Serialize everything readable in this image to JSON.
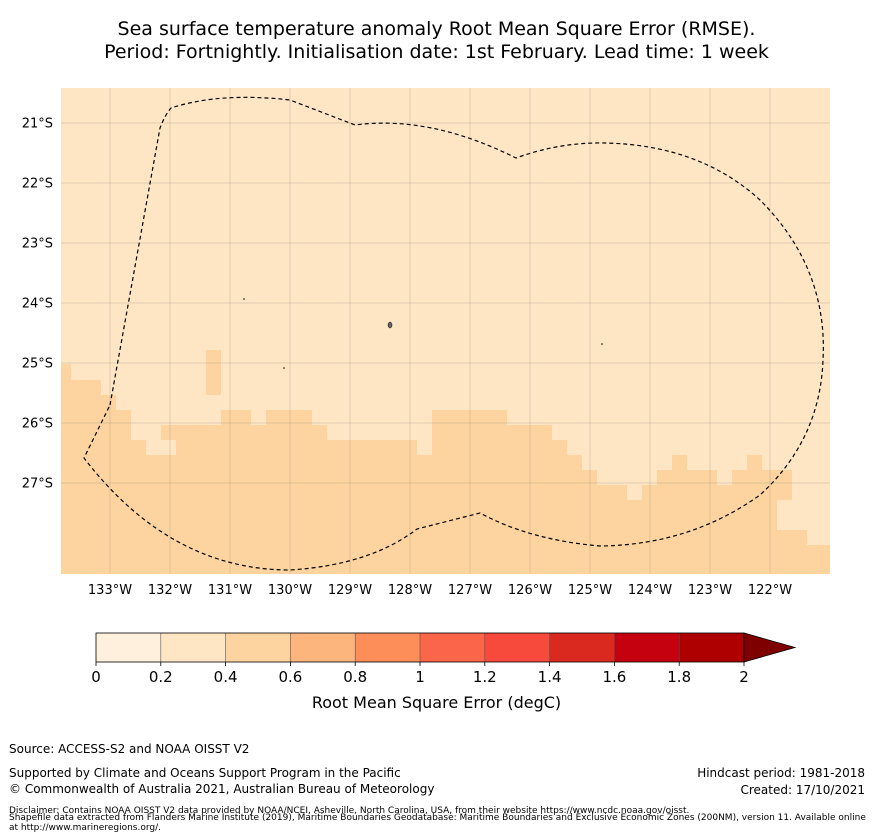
{
  "title": {
    "line1": "Sea surface temperature anomaly Root Mean Square Error (RMSE).",
    "line2": "Period: Fortnightly. Initialisation date: 1st February. Lead time: 1 week"
  },
  "map": {
    "lon_labels": [
      "133°W",
      "132°W",
      "131°W",
      "130°W",
      "129°W",
      "128°W",
      "127°W",
      "126°W",
      "125°W",
      "124°W",
      "123°W",
      "122°W"
    ],
    "lat_labels": [
      "21°S",
      "22°S",
      "23°S",
      "24°S",
      "25°S",
      "26°S",
      "27°S"
    ],
    "colors": {
      "low": "#fee6c5",
      "mid": "#fdd49f",
      "outline": "#000000"
    }
  },
  "colorbar": {
    "label": "Root Mean Square Error (degC)",
    "ticks": [
      "0",
      "0.2",
      "0.4",
      "0.6",
      "0.8",
      "1",
      "1.2",
      "1.4",
      "1.6",
      "1.8",
      "2"
    ],
    "colors": [
      "#fff0dd",
      "#fee6c5",
      "#fdd49f",
      "#fdb57e",
      "#fd8d59",
      "#fb6549",
      "#f84a3c",
      "#da2a20",
      "#c5000f",
      "#ae0001"
    ],
    "extend_color": "#7f0000"
  },
  "footer": {
    "source": "Source: ACCESS-S2 and NOAA OISST V2",
    "supported": "Supported by Climate and Oceans Support Program in the Pacific",
    "copyright": "© Commonwealth of Australia 2021, Australian Bureau of Meteorology",
    "hindcast": "Hindcast period: 1981-2018",
    "created": "Created: 17/10/2021",
    "disclaimer1": "Disclaimer: Contains NOAA OISST V2 data provided by NOAA/NCEI, Asheville, North Carolina, USA, from their website https://www.ncdc.noaa.gov/oisst.",
    "disclaimer2": "Shapefile data extracted from Flanders Marine Institute (2019), Maritime Boundaries Geodatabase: Maritime Boundaries and Exclusive Economic Zones (200NM), version 11. Available online at http://www.marineregions.org/."
  }
}
